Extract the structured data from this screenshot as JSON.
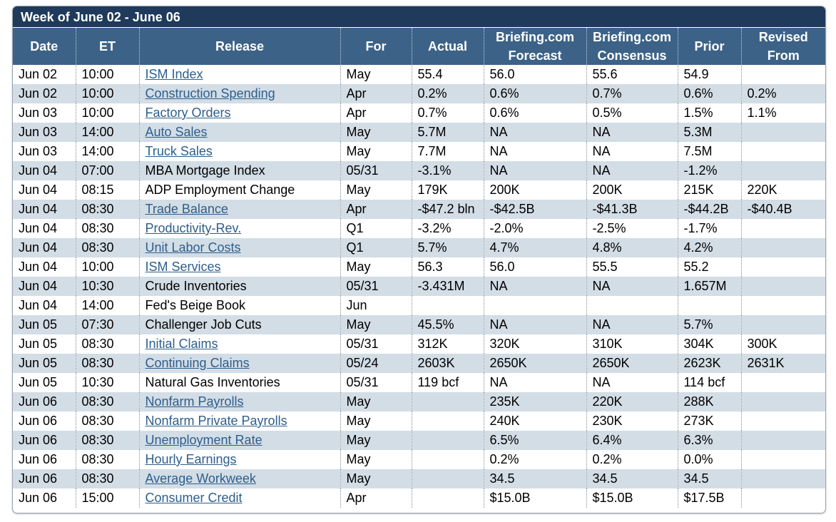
{
  "title": "Week of June 02 - June 06",
  "headers": [
    "Date",
    "ET",
    "Release",
    "For",
    "Actual",
    "Briefing.com\nForecast",
    "Briefing.com\nConsensus",
    "Prior",
    "Revised\nFrom"
  ],
  "rows": [
    {
      "date": "Jun 02",
      "et": "10:00",
      "release": "ISM Index",
      "link": true,
      "for": "May",
      "actual": "55.4",
      "forecast": "56.0",
      "consensus": "55.6",
      "prior": "54.9",
      "revised": ""
    },
    {
      "date": "Jun 02",
      "et": "10:00",
      "release": "Construction Spending",
      "link": true,
      "for": "Apr",
      "actual": "0.2%",
      "forecast": "0.6%",
      "consensus": "0.7%",
      "prior": "0.6%",
      "revised": "0.2%"
    },
    {
      "date": "Jun 03",
      "et": "10:00",
      "release": "Factory Orders",
      "link": true,
      "for": "Apr",
      "actual": "0.7%",
      "forecast": "0.6%",
      "consensus": "0.5%",
      "prior": "1.5%",
      "revised": "1.1%"
    },
    {
      "date": "Jun 03",
      "et": "14:00",
      "release": "Auto Sales",
      "link": true,
      "for": "May",
      "actual": "5.7M",
      "forecast": "NA",
      "consensus": "NA",
      "prior": "5.3M",
      "revised": ""
    },
    {
      "date": "Jun 03",
      "et": "14:00",
      "release": "Truck Sales",
      "link": true,
      "for": "May",
      "actual": "7.7M",
      "forecast": "NA",
      "consensus": "NA",
      "prior": "7.5M",
      "revised": ""
    },
    {
      "date": "Jun 04",
      "et": "07:00",
      "release": "MBA Mortgage Index",
      "link": false,
      "for": "05/31",
      "actual": "-3.1%",
      "forecast": "NA",
      "consensus": "NA",
      "prior": "-1.2%",
      "revised": ""
    },
    {
      "date": "Jun 04",
      "et": "08:15",
      "release": "ADP Employment Change",
      "link": false,
      "for": "May",
      "actual": "179K",
      "forecast": "200K",
      "consensus": "200K",
      "prior": "215K",
      "revised": "220K"
    },
    {
      "date": "Jun 04",
      "et": "08:30",
      "release": "Trade Balance",
      "link": true,
      "for": "Apr",
      "actual": "-$47.2 bln",
      "forecast": "-$42.5B",
      "consensus": "-$41.3B",
      "prior": "-$44.2B",
      "revised": "-$40.4B"
    },
    {
      "date": "Jun 04",
      "et": "08:30",
      "release": "Productivity-Rev.",
      "link": true,
      "for": "Q1",
      "actual": "-3.2%",
      "forecast": "-2.0%",
      "consensus": "-2.5%",
      "prior": "-1.7%",
      "revised": ""
    },
    {
      "date": "Jun 04",
      "et": "08:30",
      "release": "Unit Labor Costs",
      "link": true,
      "for": "Q1",
      "actual": "5.7%",
      "forecast": "4.7%",
      "consensus": "4.8%",
      "prior": "4.2%",
      "revised": ""
    },
    {
      "date": "Jun 04",
      "et": "10:00",
      "release": "ISM Services",
      "link": true,
      "for": "May",
      "actual": "56.3",
      "forecast": "56.0",
      "consensus": "55.5",
      "prior": "55.2",
      "revised": ""
    },
    {
      "date": "Jun 04",
      "et": "10:30",
      "release": "Crude Inventories",
      "link": false,
      "for": "05/31",
      "actual": "-3.431M",
      "forecast": "NA",
      "consensus": "NA",
      "prior": "1.657M",
      "revised": ""
    },
    {
      "date": "Jun 04",
      "et": "14:00",
      "release": "Fed's Beige Book",
      "link": false,
      "for": "Jun",
      "actual": "",
      "forecast": "",
      "consensus": "",
      "prior": "",
      "revised": ""
    },
    {
      "date": "Jun 05",
      "et": "07:30",
      "release": "Challenger Job Cuts",
      "link": false,
      "for": "May",
      "actual": "45.5%",
      "forecast": "NA",
      "consensus": "NA",
      "prior": "5.7%",
      "revised": ""
    },
    {
      "date": "Jun 05",
      "et": "08:30",
      "release": "Initial Claims",
      "link": true,
      "for": "05/31",
      "actual": "312K",
      "forecast": "320K",
      "consensus": "310K",
      "prior": "304K",
      "revised": "300K"
    },
    {
      "date": "Jun 05",
      "et": "08:30",
      "release": "Continuing Claims",
      "link": true,
      "for": "05/24",
      "actual": "2603K",
      "forecast": "2650K",
      "consensus": "2650K",
      "prior": "2623K",
      "revised": "2631K"
    },
    {
      "date": "Jun 05",
      "et": "10:30",
      "release": "Natural Gas Inventories",
      "link": false,
      "for": "05/31",
      "actual": "119 bcf",
      "forecast": "NA",
      "consensus": "NA",
      "prior": "114 bcf",
      "revised": ""
    },
    {
      "date": "Jun 06",
      "et": "08:30",
      "release": "Nonfarm Payrolls",
      "link": true,
      "for": "May",
      "actual": "",
      "forecast": "235K",
      "consensus": "220K",
      "prior": "288K",
      "revised": ""
    },
    {
      "date": "Jun 06",
      "et": "08:30",
      "release": "Nonfarm Private Payrolls",
      "link": true,
      "for": "May",
      "actual": "",
      "forecast": "240K",
      "consensus": "230K",
      "prior": "273K",
      "revised": ""
    },
    {
      "date": "Jun 06",
      "et": "08:30",
      "release": "Unemployment Rate",
      "link": true,
      "for": "May",
      "actual": "",
      "forecast": "6.5%",
      "consensus": "6.4%",
      "prior": "6.3%",
      "revised": ""
    },
    {
      "date": "Jun 06",
      "et": "08:30",
      "release": "Hourly Earnings",
      "link": true,
      "for": "May",
      "actual": "",
      "forecast": "0.2%",
      "consensus": "0.2%",
      "prior": "0.0%",
      "revised": ""
    },
    {
      "date": "Jun 06",
      "et": "08:30",
      "release": "Average Workweek",
      "link": true,
      "for": "May",
      "actual": "",
      "forecast": "34.5",
      "consensus": "34.5",
      "prior": "34.5",
      "revised": ""
    },
    {
      "date": "Jun 06",
      "et": "15:00",
      "release": "Consumer Credit",
      "link": true,
      "for": "Apr",
      "actual": "",
      "forecast": "$15.0B",
      "consensus": "$15.0B",
      "prior": "$17.5B",
      "revised": ""
    }
  ]
}
